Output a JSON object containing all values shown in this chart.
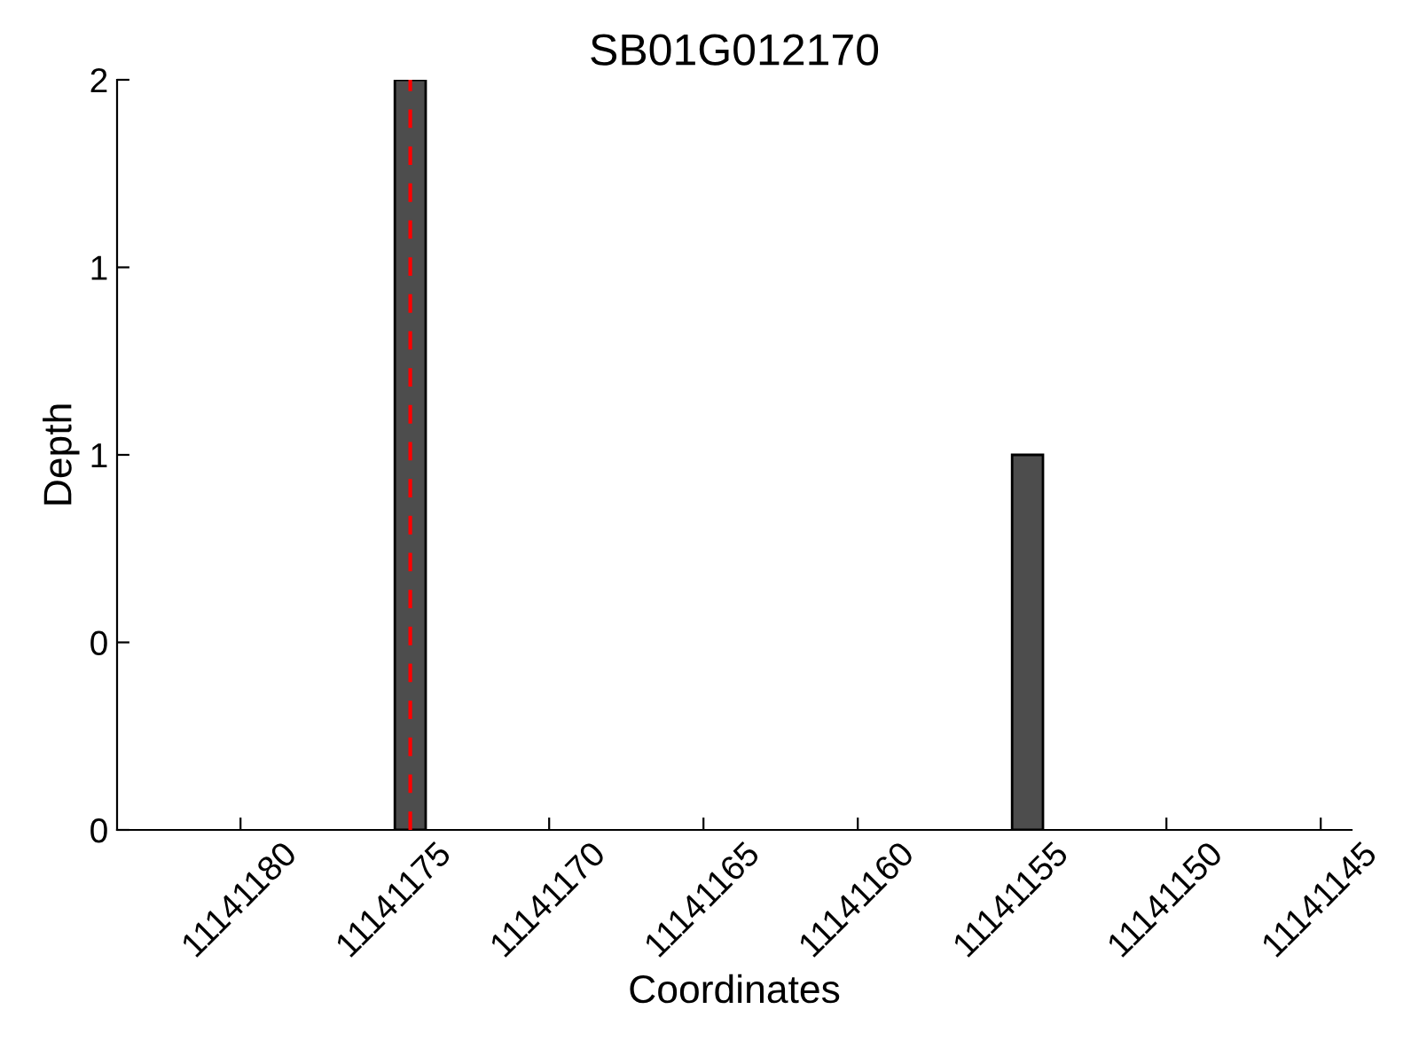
{
  "chart_data": {
    "type": "bar",
    "title": "SB01G012170",
    "xlabel": "Coordinates",
    "ylabel": "Depth",
    "x": [
      11141174.5,
      11141154.5
    ],
    "values": [
      2,
      1
    ],
    "color": "#4d4d4d",
    "xlim": [
      11141184,
      11141144
    ],
    "xticks": [
      11141180,
      11141175,
      11141170,
      11141165,
      11141160,
      11141155,
      11141150,
      11141145
    ],
    "ylim": [
      0,
      2
    ],
    "yticks": [
      0,
      {
        "value": 0.5,
        "label": "0"
      },
      1,
      {
        "value": 1.5,
        "label": "1"
      },
      2
    ],
    "ref_lines": [
      {
        "axis": "x",
        "value": 11141174.5,
        "color": "#ff0000",
        "line_style": "dashed"
      }
    ],
    "grid": false
  }
}
